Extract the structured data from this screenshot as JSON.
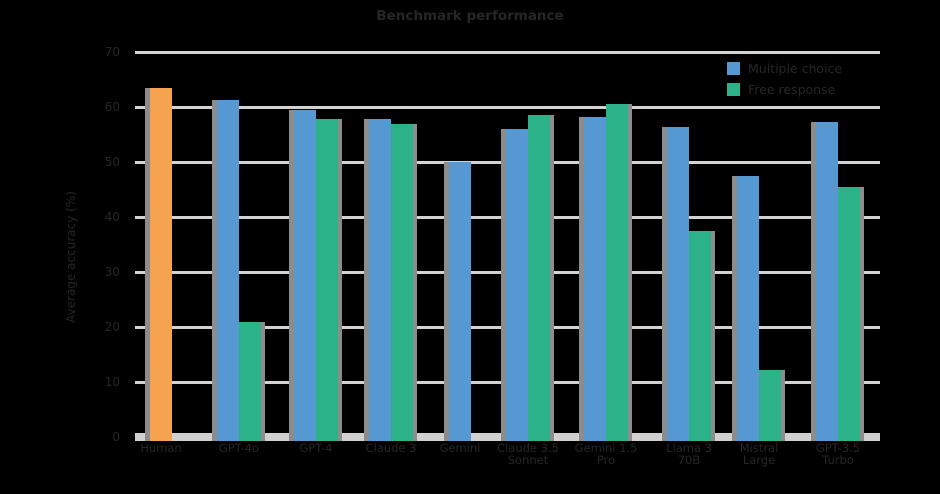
{
  "title": "Benchmark performance",
  "y_axis": {
    "label": "Average accuracy (%)",
    "ticks": [
      0,
      10,
      20,
      30,
      40,
      50,
      60,
      70
    ]
  },
  "legend": {
    "items": [
      {
        "label": "Multiple choice",
        "color": "#5598D2"
      },
      {
        "label": "Free response",
        "color": "#2BB288"
      }
    ]
  },
  "colors": {
    "background": "#000000",
    "orange": "#F5A34E",
    "blue": "#5598D2",
    "green": "#2BB288",
    "gridline": "#D3D3D3",
    "axis": "#D0D0D0",
    "bar_shadow": "#8C8C8C",
    "text": "#262626"
  },
  "chart_data": {
    "type": "bar",
    "title": "Benchmark performance",
    "xlabel": "",
    "ylabel": "Average accuracy (%)",
    "ylim": [
      0,
      70
    ],
    "yticks": [
      0,
      10,
      20,
      30,
      40,
      50,
      60,
      70
    ],
    "grid": true,
    "legend_position": "top-right",
    "categories": [
      "Human",
      "GPT-4o",
      "GPT-4",
      "Claude 3",
      "Gemini",
      "Claude 3.5 Sonnet",
      "Gemini 1.5 Pro",
      "Llama 3 70B",
      "Mistral Large",
      "GPT-3.5 Turbo"
    ],
    "series": [
      {
        "name": "Human",
        "color": "#F5A34E",
        "values": [
          63.5,
          null,
          null,
          null,
          null,
          null,
          null,
          null,
          null,
          null
        ]
      },
      {
        "name": "Multiple choice",
        "color": "#5598D2",
        "values": [
          null,
          61.2,
          59.5,
          57.8,
          50.0,
          56.0,
          58.2,
          56.3,
          47.5,
          57.2
        ]
      },
      {
        "name": "Free response",
        "color": "#2BB288",
        "values": [
          null,
          21.0,
          57.8,
          57.0,
          null,
          58.6,
          60.5,
          37.5,
          12.2,
          45.5
        ]
      }
    ],
    "groups": [
      {
        "label_lines": [
          "Human"
        ],
        "bars": [
          {
            "color": "orange",
            "value": 63.5
          }
        ]
      },
      {
        "label_lines": [
          "GPT-4o"
        ],
        "bars": [
          {
            "color": "blue",
            "value": 61.2
          },
          {
            "color": "green",
            "value": 21.0
          }
        ]
      },
      {
        "label_lines": [
          "GPT-4"
        ],
        "bars": [
          {
            "color": "blue",
            "value": 59.5
          },
          {
            "color": "green",
            "value": 57.8
          }
        ]
      },
      {
        "label_lines": [
          "Claude 3"
        ],
        "bars": [
          {
            "color": "blue",
            "value": 57.8
          },
          {
            "color": "green",
            "value": 57.0
          }
        ]
      },
      {
        "label_lines": [
          "Gemini"
        ],
        "bars": [
          {
            "color": "blue",
            "value": 50.0
          }
        ]
      },
      {
        "label_lines": [
          "Claude 3.5",
          "Sonnet"
        ],
        "bars": [
          {
            "color": "blue",
            "value": 56.0
          },
          {
            "color": "green",
            "value": 58.6
          }
        ]
      },
      {
        "label_lines": [
          "Gemini 1.5",
          "Pro"
        ],
        "bars": [
          {
            "color": "blue",
            "value": 58.2
          },
          {
            "color": "green",
            "value": 60.5
          }
        ]
      },
      {
        "label_lines": [
          "Llama 3",
          "70B"
        ],
        "bars": [
          {
            "color": "blue",
            "value": 56.3
          },
          {
            "color": "green",
            "value": 37.5
          }
        ]
      },
      {
        "label_lines": [
          "Mistral",
          "Large"
        ],
        "bars": [
          {
            "color": "blue",
            "value": 47.5
          },
          {
            "color": "green",
            "value": 12.2
          }
        ]
      },
      {
        "label_lines": [
          "GPT-3.5",
          "Turbo"
        ],
        "bars": [
          {
            "color": "blue",
            "value": 57.2
          },
          {
            "color": "green",
            "value": 45.5
          }
        ]
      }
    ]
  }
}
